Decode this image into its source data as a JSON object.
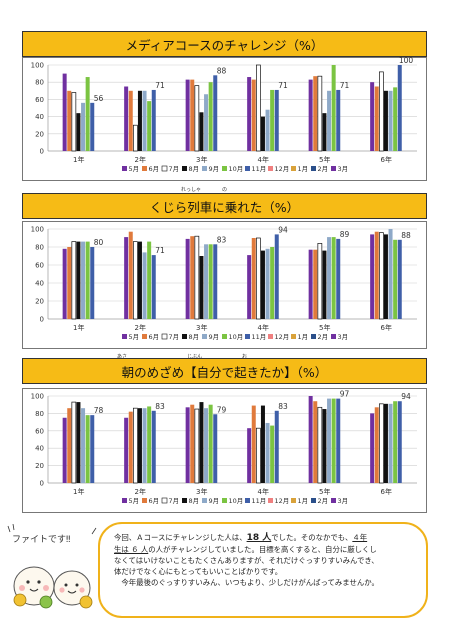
{
  "colors": [
    "#7030a0",
    "#e07a3c",
    "#ffffff",
    "#111111",
    "#8ea9c8",
    "#7bc442",
    "#3f5fa8",
    "#f08080",
    "#d9a23a",
    "#2b4f8a"
  ],
  "legend": [
    "5月",
    "6月",
    "7月",
    "8月",
    "9月",
    "10月",
    "11月",
    "12月",
    "1月",
    "2月",
    "3月"
  ],
  "chart_data": [
    {
      "type": "bar",
      "title": "メディアコースのチャレンジ（%）",
      "categories": [
        "1年",
        "2年",
        "3年",
        "4年",
        "5年",
        "6年"
      ],
      "ylim": [
        0,
        100
      ],
      "yticks": [
        "0",
        "20",
        "40",
        "60",
        "80",
        "100"
      ],
      "series": [
        {
          "name": "5月",
          "values": [
            90,
            75,
            83,
            86,
            83,
            80
          ]
        },
        {
          "name": "6月",
          "values": [
            70,
            70,
            83,
            83,
            87,
            75
          ]
        },
        {
          "name": "7月",
          "values": [
            68,
            30,
            76,
            100,
            87,
            92
          ]
        },
        {
          "name": "8月",
          "values": [
            44,
            70,
            45,
            40,
            44,
            70
          ]
        },
        {
          "name": "9月",
          "values": [
            56,
            70,
            66,
            48,
            70,
            70
          ]
        },
        {
          "name": "10月",
          "values": [
            86,
            58,
            80,
            71,
            100,
            74
          ]
        },
        {
          "name": "11月",
          "values": [
            56,
            71,
            88,
            71,
            71,
            100
          ]
        }
      ],
      "labels": [
        {
          "i": 0,
          "s": 6,
          "text": "56"
        },
        {
          "i": 1,
          "s": 6,
          "text": "71"
        },
        {
          "i": 2,
          "s": 6,
          "text": "88"
        },
        {
          "i": 3,
          "s": 6,
          "text": "71"
        },
        {
          "i": 4,
          "s": 6,
          "text": "71"
        },
        {
          "i": 5,
          "s": 6,
          "text": "100"
        }
      ]
    },
    {
      "type": "bar",
      "title": "くじら列車に乗れた（%）",
      "ruby": [
        {
          "text": "れっしゃ"
        },
        {
          "text": "の"
        }
      ],
      "categories": [
        "1年",
        "2年",
        "3年",
        "4年",
        "5年",
        "6年"
      ],
      "ylim": [
        0,
        100
      ],
      "yticks": [
        "0",
        "20",
        "40",
        "60",
        "80",
        "100"
      ],
      "series": [
        {
          "name": "5月",
          "values": [
            78,
            91,
            89,
            71,
            77,
            94
          ]
        },
        {
          "name": "6月",
          "values": [
            80,
            97,
            92,
            90,
            77,
            97
          ]
        },
        {
          "name": "7月",
          "values": [
            86,
            86,
            92,
            90,
            84,
            96
          ]
        },
        {
          "name": "8月",
          "values": [
            86,
            86,
            70,
            76,
            76,
            94
          ]
        },
        {
          "name": "9月",
          "values": [
            86,
            74,
            83,
            78,
            91,
            100
          ]
        },
        {
          "name": "10月",
          "values": [
            86,
            86,
            83,
            80,
            91,
            88
          ]
        },
        {
          "name": "11月",
          "values": [
            80,
            71,
            83,
            94,
            89,
            88
          ]
        }
      ],
      "labels": [
        {
          "i": 0,
          "s": 6,
          "text": "80"
        },
        {
          "i": 1,
          "s": 6,
          "text": "71"
        },
        {
          "i": 2,
          "s": 6,
          "text": "83"
        },
        {
          "i": 3,
          "s": 6,
          "text": "94"
        },
        {
          "i": 4,
          "s": 6,
          "text": "89"
        },
        {
          "i": 5,
          "s": 6,
          "text": "88"
        }
      ]
    },
    {
      "type": "bar",
      "title": "朝のめざめ【自分で起きたか】（%）",
      "ruby": [
        {
          "text": "あさ"
        },
        {
          "text": "じぶん"
        },
        {
          "text": "お"
        }
      ],
      "categories": [
        "1年",
        "2年",
        "3年",
        "4年",
        "5年",
        "6年"
      ],
      "ylim": [
        0,
        100
      ],
      "yticks": [
        "0",
        "20",
        "40",
        "60",
        "80",
        "100"
      ],
      "series": [
        {
          "name": "5月",
          "values": [
            75,
            75,
            87,
            63,
            100,
            80
          ]
        },
        {
          "name": "6月",
          "values": [
            86,
            82,
            90,
            89,
            94,
            87
          ]
        },
        {
          "name": "7月",
          "values": [
            93,
            86,
            85,
            63,
            87,
            91
          ]
        },
        {
          "name": "8月",
          "values": [
            93,
            86,
            93,
            89,
            85,
            91
          ]
        },
        {
          "name": "9月",
          "values": [
            86,
            86,
            86,
            69,
            97,
            91
          ]
        },
        {
          "name": "10月",
          "values": [
            78,
            88,
            90,
            66,
            97,
            94
          ]
        },
        {
          "name": "11月",
          "values": [
            78,
            83,
            79,
            83,
            97,
            94
          ]
        }
      ],
      "labels": [
        {
          "i": 0,
          "s": 6,
          "text": "78"
        },
        {
          "i": 1,
          "s": 6,
          "text": "83"
        },
        {
          "i": 2,
          "s": 6,
          "text": "79"
        },
        {
          "i": 3,
          "s": 6,
          "text": "83"
        },
        {
          "i": 4,
          "s": 6,
          "text": "97"
        },
        {
          "i": 5,
          "s": 6,
          "text": "94"
        }
      ]
    }
  ],
  "message": {
    "bubble": "ファイトです‼",
    "line1a": "今回、Ａコースにチャレンジした人は、",
    "line1b": "18 人",
    "line1c": "でした。そのなかでも、",
    "line1d": "４年",
    "line2a": "生は ６ 人",
    "line2b": "の人がチャレンジしていました。目標を高くすると、自分に厳しくし",
    "line3": "なくてはいけないこともたくさんありますが、それだけぐっすりすいみんでき、",
    "line4": "体だけでなく心にもとってもいいことばかりです。",
    "line5": "今年最後のぐっすりすいみん、いつもより、少しだけがんばってみませんか。"
  }
}
